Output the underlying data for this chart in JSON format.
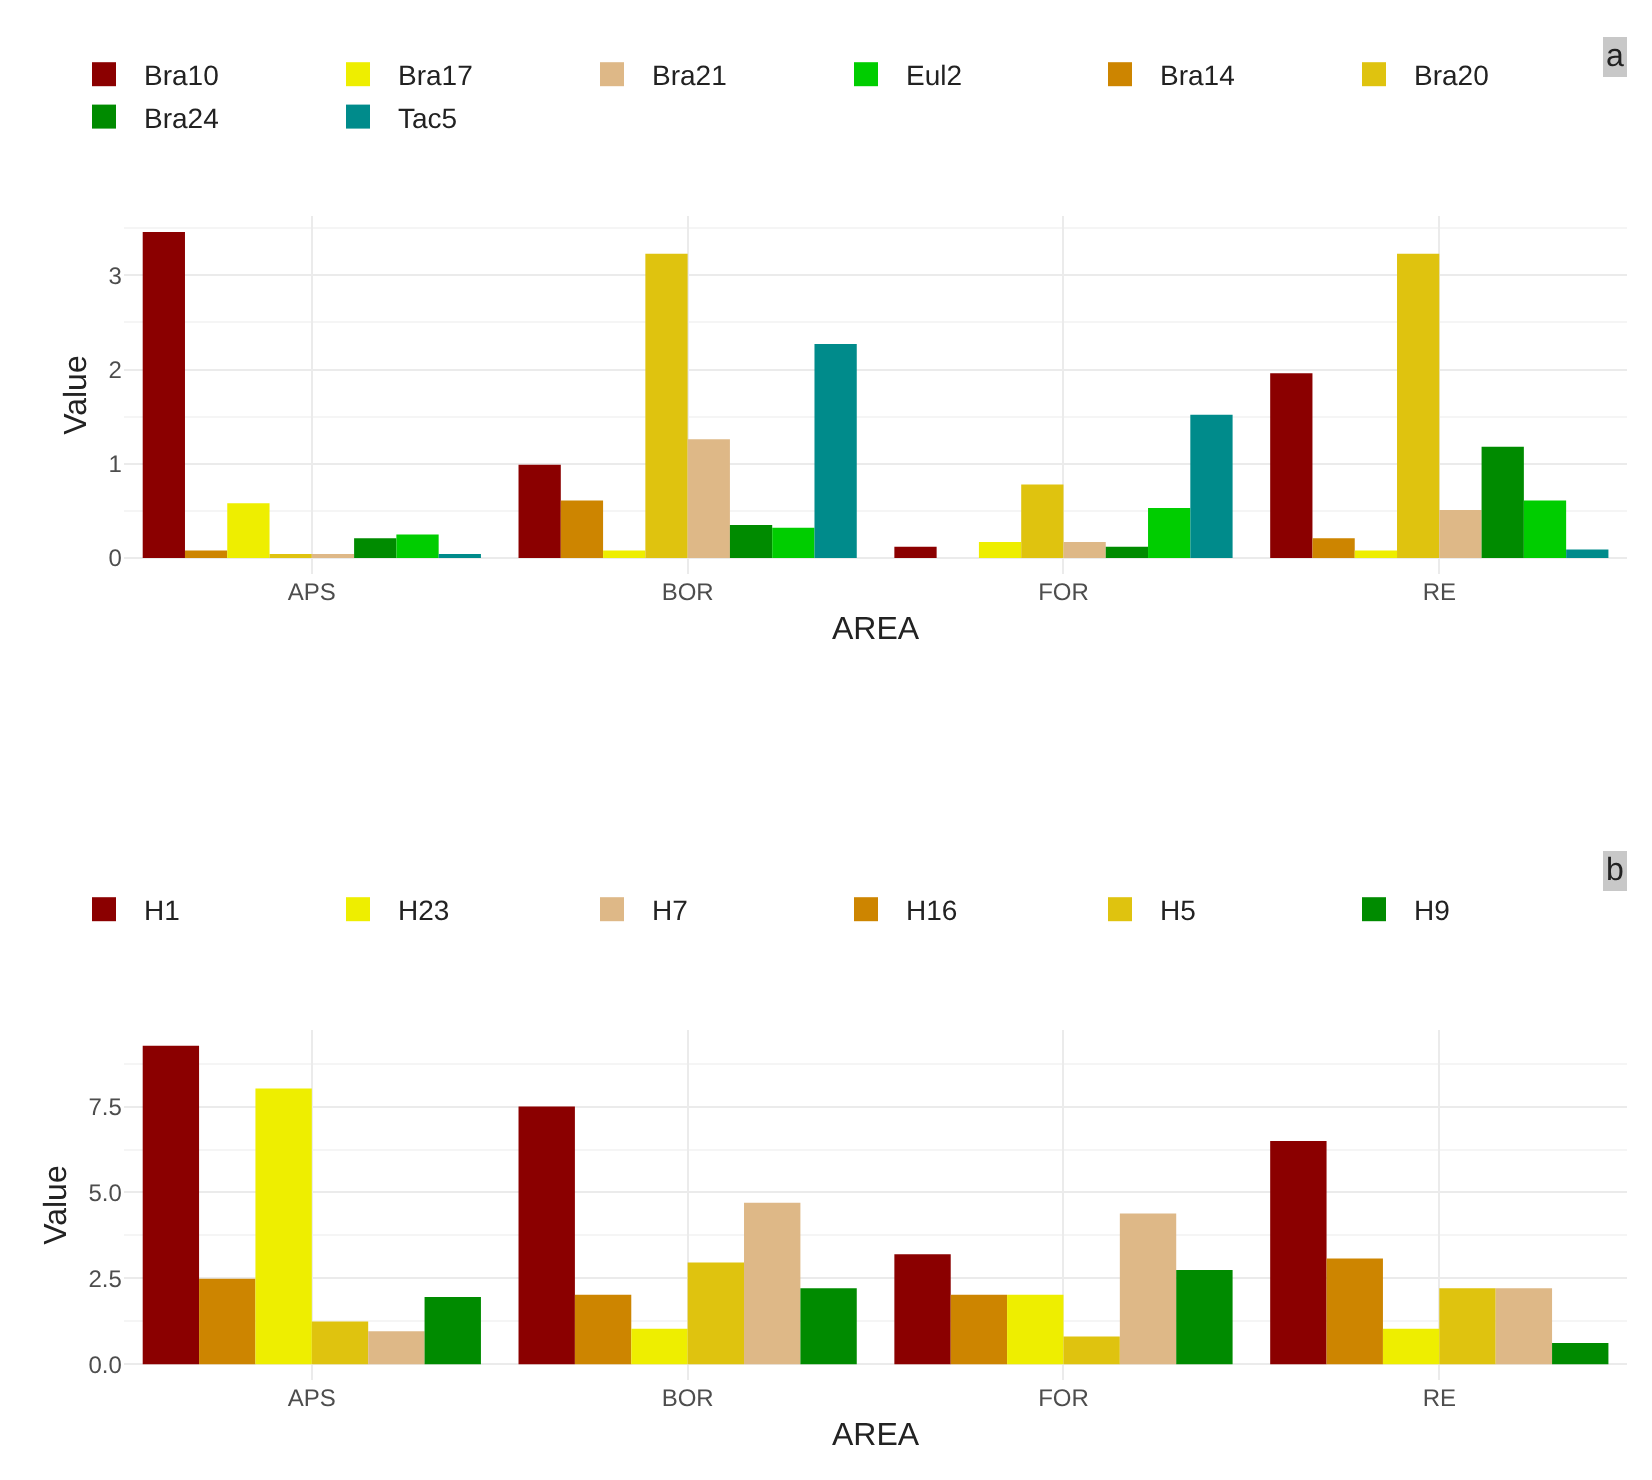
{
  "chart_data": [
    {
      "type": "bar",
      "xlabel": "AREA",
      "ylabel": "Value",
      "categories": [
        "APS",
        "BOR",
        "FOR",
        "RE"
      ],
      "ylim": [
        -0.17,
        3.63
      ],
      "yticks": [
        0,
        1,
        2,
        3
      ],
      "grid": true,
      "legend": "top",
      "annotations": [
        "a"
      ],
      "series": [
        {
          "name": "Bra10",
          "color": "#8b0000",
          "values": [
            3.46,
            0.99,
            0.12,
            1.96
          ]
        },
        {
          "name": "Bra14",
          "color": "#cd8500",
          "values": [
            0.08,
            0.61,
            null,
            0.21
          ]
        },
        {
          "name": "Bra17",
          "color": "#eeee00",
          "values": [
            0.58,
            0.08,
            0.17,
            0.08
          ]
        },
        {
          "name": "Bra20",
          "color": "#dfc30f",
          "values": [
            0.03,
            3.23,
            0.78,
            3.23
          ]
        },
        {
          "name": "Bra21",
          "color": "#deb887",
          "values": [
            0.03,
            1.26,
            0.17,
            0.51
          ]
        },
        {
          "name": "Bra24",
          "color": "#008b00",
          "values": [
            0.21,
            0.35,
            0.12,
            1.18
          ]
        },
        {
          "name": "Eul2",
          "color": "#00cd00",
          "values": [
            0.25,
            0.32,
            0.53,
            0.61
          ]
        },
        {
          "name": "Tac5",
          "color": "#008b8b",
          "values": [
            0.03,
            2.27,
            1.52,
            0.09
          ]
        }
      ]
    },
    {
      "type": "bar",
      "xlabel": "AREA",
      "ylabel": "Value",
      "categories": [
        "APS",
        "BOR",
        "FOR",
        "RE"
      ],
      "ylim": [
        -0.46,
        9.73
      ],
      "yticks": [
        {
          "value": 0,
          "label": "0.0"
        },
        {
          "value": 2.5,
          "label": "2.5"
        },
        {
          "value": 5,
          "label": "5.0"
        },
        {
          "value": 7.5,
          "label": "7.5"
        }
      ],
      "grid": true,
      "legend": "top",
      "annotations": [
        "b"
      ],
      "series": [
        {
          "name": "H1",
          "color": "#8b0000",
          "values": [
            9.27,
            7.5,
            3.2,
            6.5
          ]
        },
        {
          "name": "H16",
          "color": "#cd8500",
          "values": [
            2.49,
            2.02,
            2.02,
            3.08
          ]
        },
        {
          "name": "H23",
          "color": "#eeee00",
          "values": [
            8.03,
            1.03,
            2.02,
            1.03
          ]
        },
        {
          "name": "H5",
          "color": "#dfc30f",
          "values": [
            1.24,
            2.96,
            0.81,
            2.21
          ]
        },
        {
          "name": "H7",
          "color": "#deb887",
          "values": [
            0.96,
            4.7,
            4.39,
            2.21
          ]
        },
        {
          "name": "H9",
          "color": "#008b00",
          "values": [
            1.96,
            2.21,
            2.74,
            0.62
          ]
        }
      ]
    }
  ]
}
